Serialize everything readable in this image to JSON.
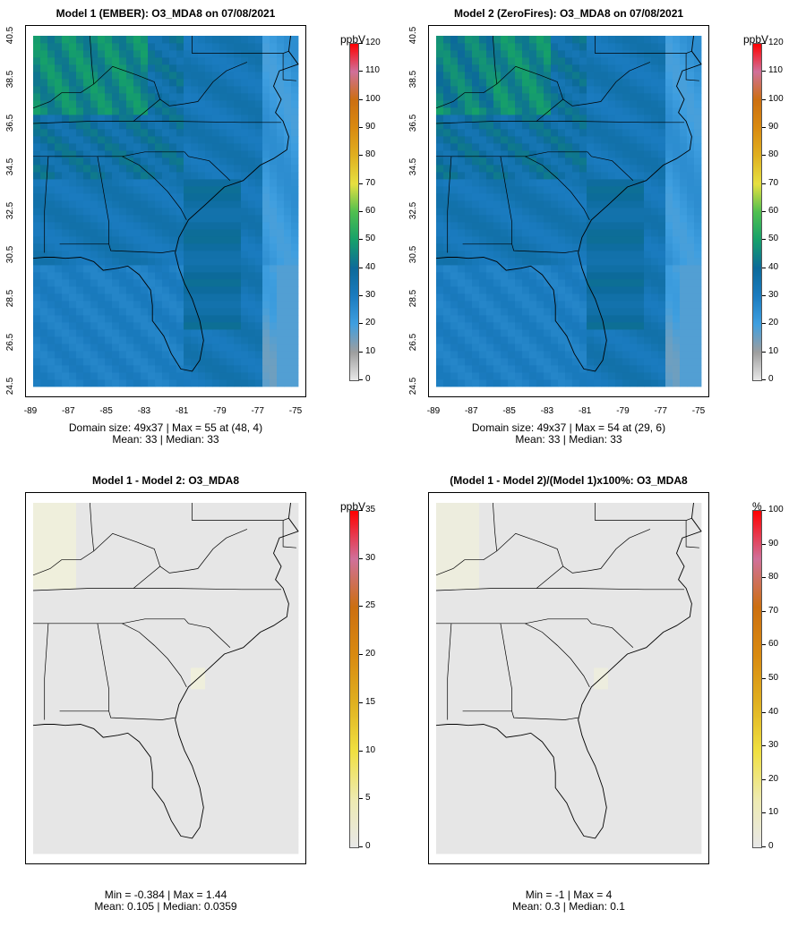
{
  "panels": [
    {
      "title": "Model 1 (EMBER): O3_MDA8 on 07/08/2021",
      "unit": "ppbV",
      "stats_line1": "Domain size: 49x37 | Max = 55 at (48, 4)",
      "stats_line2": "Mean: 33 |  Median: 33",
      "colorbar_ticks": [
        "0",
        "10",
        "20",
        "30",
        "40",
        "50",
        "60",
        "70",
        "80",
        "90",
        "100",
        "110",
        "120"
      ],
      "field": "model1"
    },
    {
      "title": "Model 2 (ZeroFires): O3_MDA8 on 07/08/2021",
      "unit": "ppbV",
      "stats_line1": "Domain size: 49x37 | Max = 54 at (29, 6)",
      "stats_line2": "Mean: 33 |  Median: 33",
      "colorbar_ticks": [
        "0",
        "10",
        "20",
        "30",
        "40",
        "50",
        "60",
        "70",
        "80",
        "90",
        "100",
        "110",
        "120"
      ],
      "field": "model2"
    },
    {
      "title": "Model 1 - Model 2: O3_MDA8",
      "unit": "ppbV",
      "stats_line1": "Min = -0.384 | Max = 1.44",
      "stats_line2": "Mean: 0.105 |  Median: 0.0359",
      "colorbar_ticks": [
        "0",
        "5",
        "10",
        "15",
        "20",
        "25",
        "30",
        "35"
      ],
      "field": "diff"
    },
    {
      "title": "(Model 1 - Model 2)/(Model 1)x100%: O3_MDA8",
      "unit": "%",
      "stats_line1": "Min = -1 | Max = 4",
      "stats_line2": "Mean: 0.3 |  Median: 0.1",
      "colorbar_ticks": [
        "0",
        "10",
        "20",
        "30",
        "40",
        "50",
        "60",
        "70",
        "80",
        "90",
        "100"
      ],
      "field": "pct"
    }
  ],
  "axes": {
    "x_ticks": [
      "-89",
      "-87",
      "-85",
      "-83",
      "-81",
      "-79",
      "-77",
      "-75"
    ],
    "y_ticks": [
      "24.5",
      "26.5",
      "28.5",
      "30.5",
      "32.5",
      "34.5",
      "36.5",
      "38.5",
      "40.5"
    ]
  },
  "colors": {
    "scale": [
      "#e8e8e8",
      "#9e9e9e",
      "#3f9fe0",
      "#1a7bbf",
      "#0c6a9a",
      "#16a06a",
      "#4fbf4f",
      "#e6e040",
      "#e0b020",
      "#d98a10",
      "#cc6f10",
      "#d0709a",
      "#ff0000"
    ],
    "diff_scale": [
      "#e8e8e8",
      "#eeeab0",
      "#f0e040",
      "#e0b020",
      "#d98a10",
      "#cc6f10",
      "#d0709a",
      "#ff0000"
    ],
    "background_cell": "#e6e6e6"
  },
  "chart_data": [
    {
      "type": "heatmap",
      "title": "Model 1 (EMBER): O3_MDA8 on 07/08/2021",
      "grid_size": [
        49,
        37
      ],
      "xlim": [
        -89,
        -75
      ],
      "ylim": [
        24.5,
        40.5
      ],
      "colorbar": {
        "label": "ppbV",
        "range": [
          0,
          120
        ]
      },
      "max": 55,
      "max_at": [
        48,
        4
      ],
      "mean": 33,
      "median": 33
    },
    {
      "type": "heatmap",
      "title": "Model 2 (ZeroFires): O3_MDA8 on 07/08/2021",
      "grid_size": [
        49,
        37
      ],
      "xlim": [
        -89,
        -75
      ],
      "ylim": [
        24.5,
        40.5
      ],
      "colorbar": {
        "label": "ppbV",
        "range": [
          0,
          120
        ]
      },
      "max": 54,
      "max_at": [
        29,
        6
      ],
      "mean": 33,
      "median": 33
    },
    {
      "type": "heatmap",
      "title": "Model 1 - Model 2: O3_MDA8",
      "colorbar": {
        "label": "ppbV",
        "range": [
          0,
          35
        ]
      },
      "min": -0.384,
      "max": 1.44,
      "mean": 0.105,
      "median": 0.0359
    },
    {
      "type": "heatmap",
      "title": "(Model 1 - Model 2)/(Model 1)x100%: O3_MDA8",
      "colorbar": {
        "label": "%",
        "range": [
          0,
          100
        ]
      },
      "min": -1,
      "max": 4,
      "mean": 0.3,
      "median": 0.1
    }
  ]
}
